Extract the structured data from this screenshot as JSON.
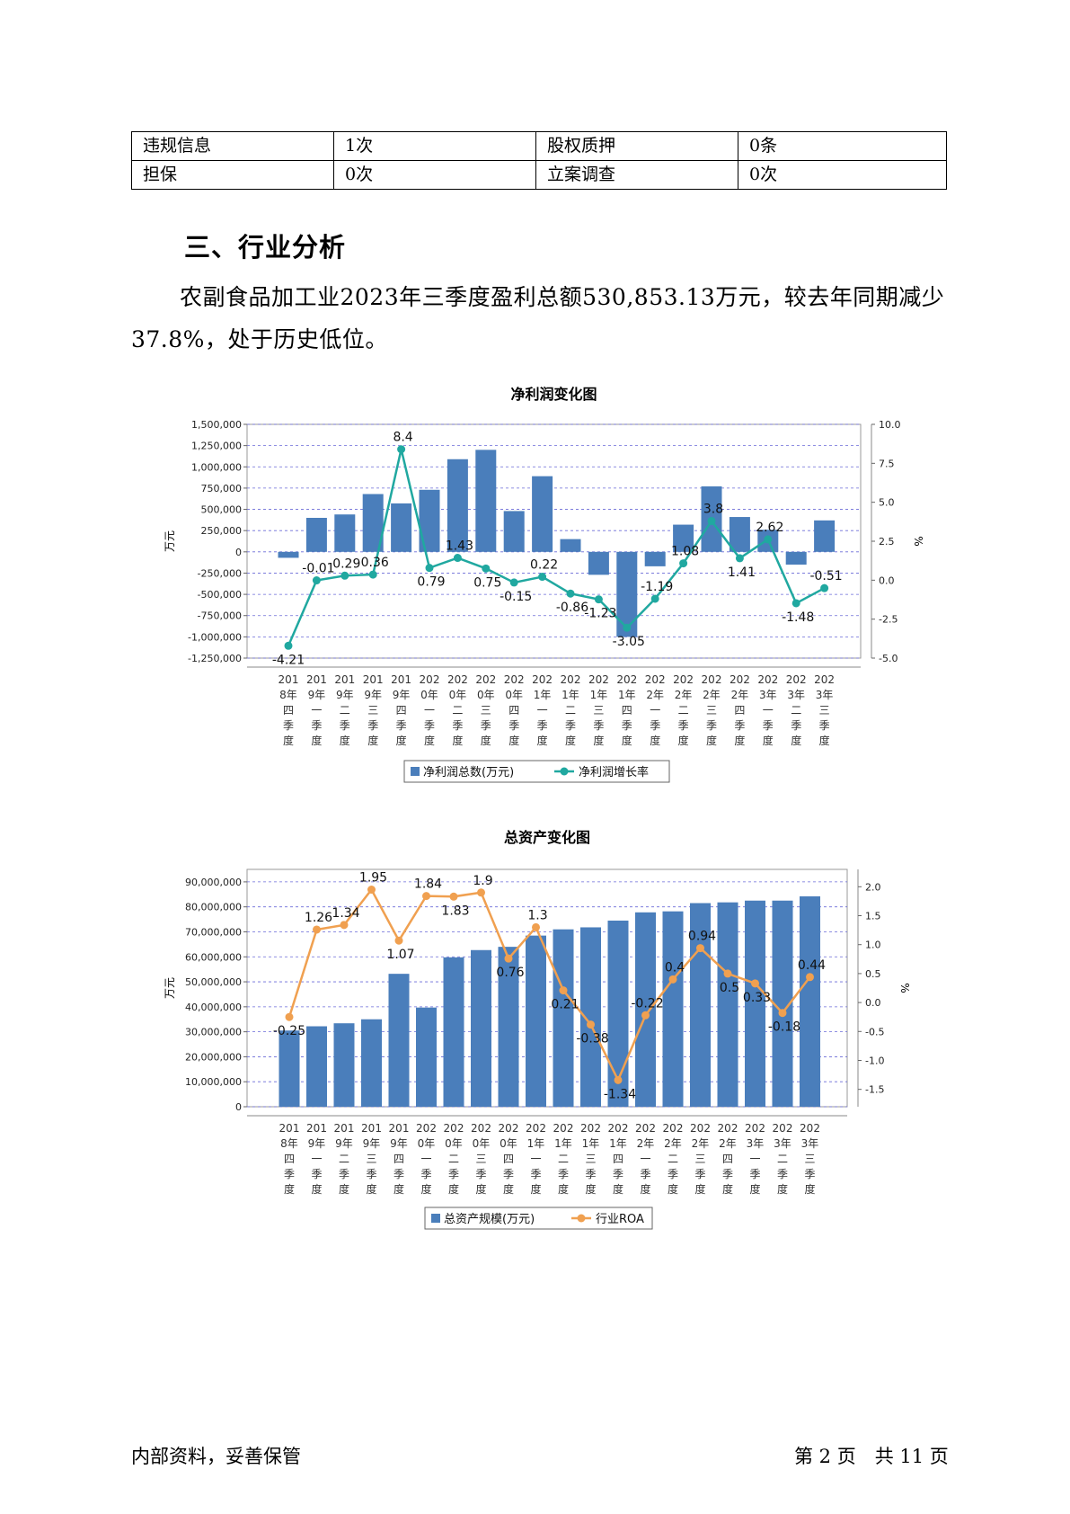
{
  "info_table": [
    [
      "违规信息",
      "1次",
      "股权质押",
      "0条"
    ],
    [
      "担保",
      "0次",
      "立案调查",
      "0次"
    ]
  ],
  "section_heading": "三、行业分析",
  "paragraph": "农副食品加工业2023年三季度盈利总额530,853.13万元，较去年同期减少37.8%，处于历史低位。",
  "chart_data": [
    {
      "type": "bar+line",
      "title": "净利润变化图",
      "categories": [
        [
          "201",
          "8年",
          "四",
          "季",
          "度"
        ],
        [
          "201",
          "9年",
          "一",
          "季",
          "度"
        ],
        [
          "201",
          "9年",
          "二",
          "季",
          "度"
        ],
        [
          "201",
          "9年",
          "三",
          "季",
          "度"
        ],
        [
          "201",
          "9年",
          "四",
          "季",
          "度"
        ],
        [
          "202",
          "0年",
          "一",
          "季",
          "度"
        ],
        [
          "202",
          "0年",
          "二",
          "季",
          "度"
        ],
        [
          "202",
          "0年",
          "三",
          "季",
          "度"
        ],
        [
          "202",
          "0年",
          "四",
          "季",
          "度"
        ],
        [
          "202",
          "1年",
          "一",
          "季",
          "度"
        ],
        [
          "202",
          "1年",
          "二",
          "季",
          "度"
        ],
        [
          "202",
          "1年",
          "三",
          "季",
          "度"
        ],
        [
          "202",
          "1年",
          "四",
          "季",
          "度"
        ],
        [
          "202",
          "2年",
          "一",
          "季",
          "度"
        ],
        [
          "202",
          "2年",
          "二",
          "季",
          "度"
        ],
        [
          "202",
          "2年",
          "三",
          "季",
          "度"
        ],
        [
          "202",
          "2年",
          "四",
          "季",
          "度"
        ],
        [
          "202",
          "3年",
          "一",
          "季",
          "度"
        ],
        [
          "202",
          "3年",
          "二",
          "季",
          "度"
        ],
        [
          "202",
          "3年",
          "三",
          "季",
          "度"
        ]
      ],
      "ylabel_left": "万元",
      "ylabel_right": "%",
      "ylim_left": [
        -1250000,
        1500000
      ],
      "yticks_left": [
        "1,500,000",
        "1,250,000",
        "1,000,000",
        "750,000",
        "500,000",
        "250,000",
        "0",
        "-250,000",
        "-500,000",
        "-750,000",
        "-1,000,000",
        "-1,250,000"
      ],
      "ylim_right": [
        -5.0,
        10.0
      ],
      "yticks_right": [
        "10.0",
        "7.5",
        "5.0",
        "2.5",
        "0.0",
        "-2.5",
        "-5.0"
      ],
      "series": [
        {
          "name": "净利润总数(万元)",
          "kind": "bar",
          "color": "#4a7ebb",
          "values": [
            -70000,
            400000,
            440000,
            680000,
            570000,
            730000,
            1090000,
            1200000,
            480000,
            890000,
            150000,
            -270000,
            -1000000,
            -170000,
            320000,
            770000,
            410000,
            260000,
            -150000,
            370000
          ]
        },
        {
          "name": "净利润增长率",
          "kind": "line",
          "color": "#20a8a0",
          "values": [
            -4.21,
            -0.01,
            0.29,
            0.36,
            8.4,
            0.79,
            1.43,
            0.75,
            -0.15,
            0.22,
            -0.86,
            -1.23,
            -3.05,
            -1.19,
            1.08,
            3.8,
            1.41,
            2.62,
            -1.48,
            -0.51
          ],
          "labels": [
            "-4.21",
            "-0.01",
            "0.29",
            "0.36",
            "8.4",
            "0.79",
            "1.43",
            "0.75",
            "-0.15",
            "0.22",
            "-0.86",
            "-1.23",
            "-3.05",
            "-1.19",
            "1.08",
            "3.8",
            "1.41",
            "2.62",
            "-1.48",
            "-0.51"
          ]
        }
      ],
      "grid": true,
      "legend_position": "bottom"
    },
    {
      "type": "bar+line",
      "title": "总资产变化图",
      "categories": [
        [
          "201",
          "8年",
          "四",
          "季",
          "度"
        ],
        [
          "201",
          "9年",
          "一",
          "季",
          "度"
        ],
        [
          "201",
          "9年",
          "二",
          "季",
          "度"
        ],
        [
          "201",
          "9年",
          "三",
          "季",
          "度"
        ],
        [
          "201",
          "9年",
          "四",
          "季",
          "度"
        ],
        [
          "202",
          "0年",
          "一",
          "季",
          "度"
        ],
        [
          "202",
          "0年",
          "二",
          "季",
          "度"
        ],
        [
          "202",
          "0年",
          "三",
          "季",
          "度"
        ],
        [
          "202",
          "0年",
          "四",
          "季",
          "度"
        ],
        [
          "202",
          "1年",
          "一",
          "季",
          "度"
        ],
        [
          "202",
          "1年",
          "二",
          "季",
          "度"
        ],
        [
          "202",
          "1年",
          "三",
          "季",
          "度"
        ],
        [
          "202",
          "1年",
          "四",
          "季",
          "度"
        ],
        [
          "202",
          "2年",
          "一",
          "季",
          "度"
        ],
        [
          "202",
          "2年",
          "二",
          "季",
          "度"
        ],
        [
          "202",
          "2年",
          "三",
          "季",
          "度"
        ],
        [
          "202",
          "2年",
          "四",
          "季",
          "度"
        ],
        [
          "202",
          "3年",
          "一",
          "季",
          "度"
        ],
        [
          "202",
          "3年",
          "二",
          "季",
          "度"
        ],
        [
          "202",
          "3年",
          "三",
          "季",
          "度"
        ]
      ],
      "ylabel_left": "万元",
      "ylabel_right": "%",
      "ylim_left": [
        0,
        95000000
      ],
      "yticks_left": [
        "90,000,000",
        "80,000,000",
        "70,000,000",
        "60,000,000",
        "50,000,000",
        "40,000,000",
        "30,000,000",
        "20,000,000",
        "10,000,000",
        "0"
      ],
      "ylim_right": [
        -1.8,
        2.3
      ],
      "yticks_right": [
        "2.0",
        "1.5",
        "1.0",
        "0.5",
        "0.0",
        "-0.5",
        "-1.0",
        "-1.5"
      ],
      "series": [
        {
          "name": "总资产规模(万元)",
          "kind": "bar",
          "color": "#4a7ebb",
          "values": [
            30500000,
            32200000,
            33400000,
            35000000,
            53200000,
            39700000,
            59800000,
            62700000,
            64000000,
            68500000,
            71000000,
            71800000,
            74500000,
            77800000,
            78200000,
            81500000,
            81800000,
            82500000,
            82500000,
            84200000
          ]
        },
        {
          "name": "行业ROA",
          "kind": "line",
          "color": "#f0a050",
          "values": [
            -0.25,
            1.26,
            1.34,
            1.95,
            1.07,
            1.84,
            1.83,
            1.9,
            0.76,
            1.3,
            0.21,
            -0.38,
            -1.34,
            -0.22,
            0.4,
            0.94,
            0.5,
            0.33,
            -0.18,
            0.44
          ],
          "labels": [
            "-0.25",
            "1.26",
            "1.34",
            "1.95",
            "1.07",
            "1.84",
            "1.83",
            "1.9",
            "0.76",
            "1.3",
            "0.21",
            "-0.38",
            "-1.34",
            "-0.22",
            "0.4",
            "0.94",
            "0.5",
            "0.33",
            "-0.18",
            "0.44"
          ]
        }
      ],
      "grid": true,
      "legend_position": "bottom"
    }
  ],
  "footer": {
    "left": "内部资料，妥善保管",
    "right": "第 2 页　共 11 页"
  }
}
